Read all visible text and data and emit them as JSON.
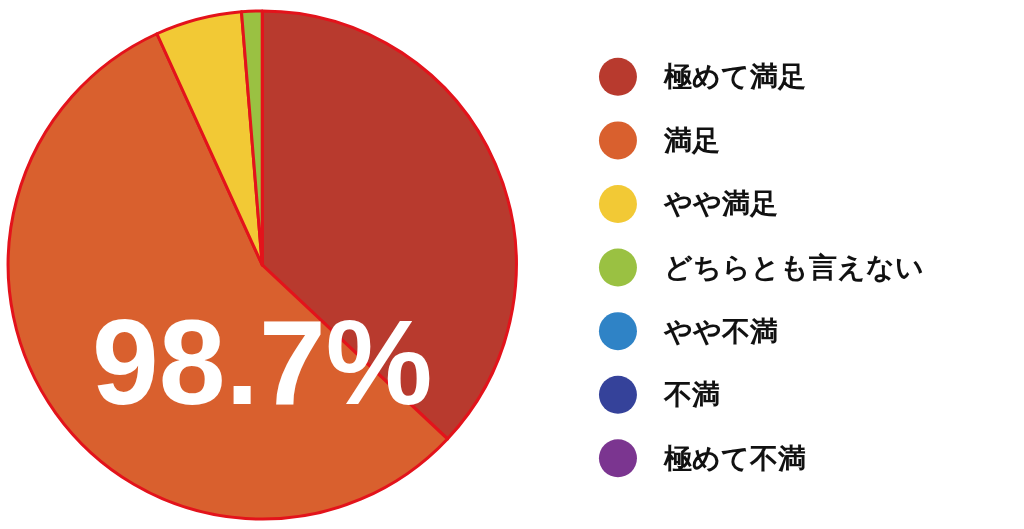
{
  "chart_data": {
    "type": "pie",
    "categories": [
      "極めて満足",
      "満足",
      "やや満足",
      "どちらとも言えない",
      "やや不満",
      "不満",
      "極めて不満"
    ],
    "values": [
      37.0,
      56.2,
      5.5,
      1.3,
      0,
      0,
      0
    ],
    "colors": [
      "#b83a2e",
      "#d9602e",
      "#f2c935",
      "#9ac142",
      "#2f83c6",
      "#35429a",
      "#7b3590"
    ],
    "annotations": [
      "98.7%"
    ],
    "legend": "right"
  }
}
